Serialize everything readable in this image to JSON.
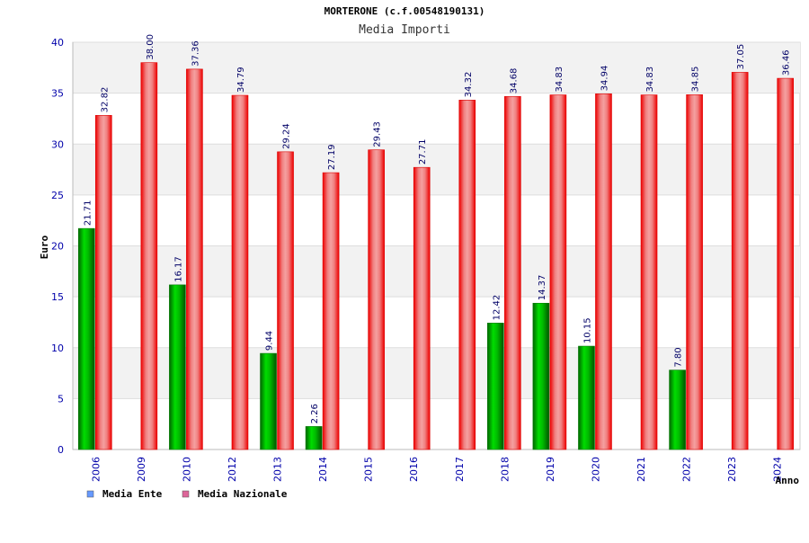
{
  "chart_data": {
    "type": "bar",
    "title": "MORTERONE (c.f.00548190131)",
    "subtitle": "Media Importi",
    "xlabel": "Anno",
    "ylabel": "Euro",
    "ylim": [
      0,
      40
    ],
    "yticks": [
      0,
      5,
      10,
      15,
      20,
      25,
      30,
      35,
      40
    ],
    "grid": true,
    "legend_position": "bottom-left",
    "categories": [
      "2006",
      "2009",
      "2010",
      "2012",
      "2013",
      "2014",
      "2015",
      "2016",
      "2017",
      "2018",
      "2019",
      "2020",
      "2021",
      "2022",
      "2023",
      "2024"
    ],
    "series": [
      {
        "name": "Media Ente",
        "color": "#00aa00",
        "legend_color": "#6699ff",
        "values": [
          21.71,
          null,
          16.17,
          null,
          9.44,
          2.26,
          null,
          null,
          null,
          12.42,
          14.37,
          10.15,
          null,
          7.8,
          null,
          null
        ],
        "labels": [
          "21.71",
          null,
          "16.17",
          null,
          "9.44",
          "2.26",
          null,
          null,
          null,
          "12.42",
          "14.37",
          "10.15",
          null,
          "7.80",
          null,
          null
        ]
      },
      {
        "name": "Media Nazionale",
        "color": "#ee1111",
        "legend_color": "#dd6699",
        "values": [
          32.82,
          38.0,
          37.36,
          34.79,
          29.24,
          27.19,
          29.43,
          27.71,
          34.32,
          34.68,
          34.83,
          34.94,
          34.83,
          34.85,
          37.05,
          36.46
        ],
        "labels": [
          "32.82",
          "38.00",
          "37.36",
          "34.79",
          "29.24",
          "27.19",
          "29.43",
          "27.71",
          "34.32",
          "34.68",
          "34.83",
          "34.94",
          "34.83",
          "34.85",
          "37.05",
          "36.46"
        ]
      }
    ]
  }
}
